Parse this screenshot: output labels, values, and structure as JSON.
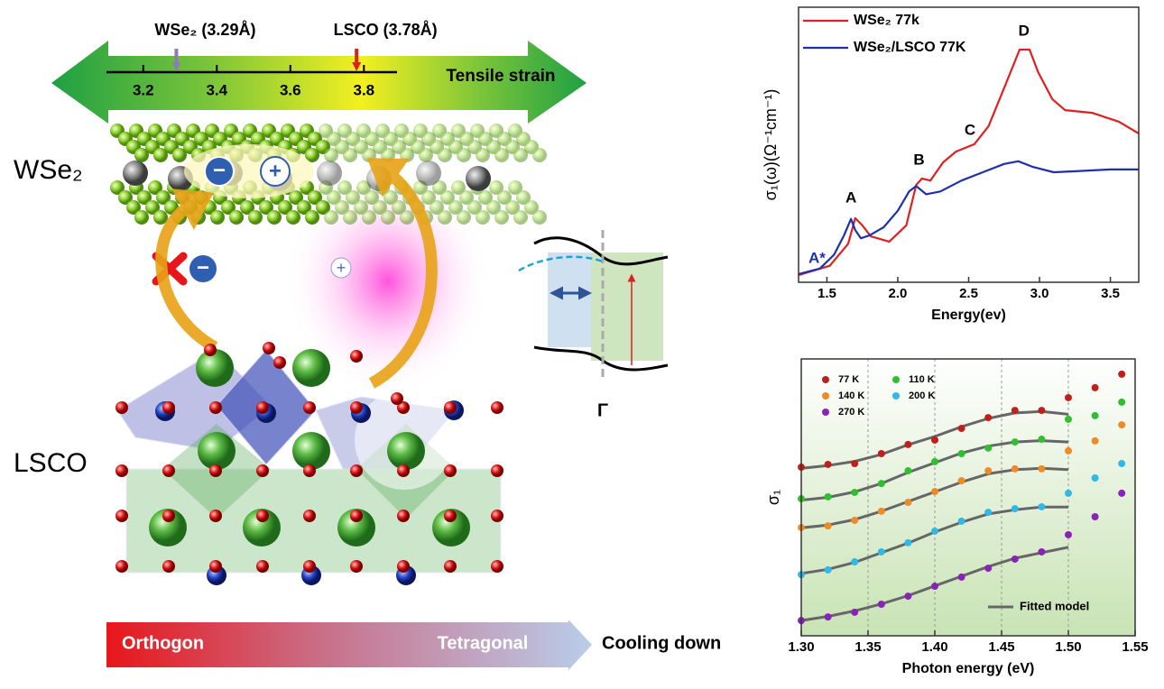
{
  "schematic": {
    "scale": {
      "xlim": [
        3.1,
        3.89
      ],
      "xticks": [
        3.2,
        3.4,
        3.6,
        3.8
      ],
      "markers": [
        {
          "label": "WSe₂ (3.29Å)",
          "value": 3.29,
          "color": "#8e7cb8"
        },
        {
          "label": "LSCO (3.78Å)",
          "value": 3.78,
          "color": "#e02020"
        }
      ]
    },
    "scale_title": "Tensile strain",
    "layers": [
      "WSe₂",
      "LSCO"
    ],
    "charges": {
      "minus": "−",
      "plus": "+"
    },
    "band_label": "Γ",
    "phase_start": "Orthogon",
    "phase_end": "Tetragonal",
    "process": "Cooling down"
  },
  "chart_data": [
    {
      "type": "line",
      "xlabel": "Energy(ev)",
      "ylabel": "σ₁(ω)(Ω⁻¹cm⁻¹)",
      "xlim": [
        1.3,
        3.7
      ],
      "ylim": [
        0,
        1
      ],
      "xticks": [
        1.5,
        {
          "value": 2.0,
          "label": "2.0"
        },
        2.5,
        {
          "value": 3.0,
          "label": "3.0"
        },
        3.5
      ],
      "legend": "upper left",
      "series": [
        {
          "name": "WSe₂ 77k",
          "color": "#e02020",
          "x": [
            1.3,
            1.52,
            1.65,
            1.7,
            1.75,
            1.81,
            1.94,
            2.06,
            2.13,
            2.17,
            2.23,
            2.32,
            2.41,
            2.54,
            2.64,
            2.77,
            2.86,
            2.93,
            2.99,
            3.09,
            3.18,
            3.37,
            3.56,
            3.7
          ],
          "values": [
            0.026,
            0.06,
            0.14,
            0.233,
            0.207,
            0.167,
            0.148,
            0.207,
            0.354,
            0.377,
            0.37,
            0.436,
            0.475,
            0.502,
            0.567,
            0.731,
            0.846,
            0.846,
            0.764,
            0.666,
            0.626,
            0.616,
            0.584,
            0.541
          ]
        },
        {
          "name": "WSe₂/LSCO 77K",
          "color": "#1f2fb0",
          "x": [
            1.3,
            1.45,
            1.55,
            1.62,
            1.67,
            1.7,
            1.74,
            1.8,
            1.9,
            2.0,
            2.08,
            2.13,
            2.2,
            2.3,
            2.45,
            2.6,
            2.75,
            2.85,
            2.95,
            3.1,
            3.3,
            3.5,
            3.7
          ],
          "values": [
            0.03,
            0.05,
            0.1,
            0.17,
            0.23,
            0.19,
            0.16,
            0.17,
            0.2,
            0.26,
            0.33,
            0.35,
            0.32,
            0.33,
            0.37,
            0.4,
            0.43,
            0.44,
            0.42,
            0.4,
            0.405,
            0.41,
            0.41
          ]
        }
      ],
      "annotations": [
        {
          "text": "A",
          "x": 1.67,
          "y": 0.305,
          "color": "#000000"
        },
        {
          "text": "B",
          "x": 2.15,
          "y": 0.443,
          "color": "#000000"
        },
        {
          "text": "C",
          "x": 2.51,
          "y": 0.551,
          "color": "#000000"
        },
        {
          "text": "D",
          "x": 2.89,
          "y": 0.911,
          "color": "#000000"
        },
        {
          "text": "A*",
          "x": 1.43,
          "y": 0.085,
          "color": "#1f2fb0"
        }
      ]
    },
    {
      "type": "scatter",
      "xlabel": "Photon energy (eV)",
      "ylabel": "σ₁",
      "xlim": [
        1.3,
        1.55
      ],
      "ylim": [
        0,
        1
      ],
      "xticks": [
        {
          "value": 1.3,
          "label": "1.30"
        },
        1.35,
        {
          "value": 1.4,
          "label": "1.40"
        },
        1.45,
        {
          "value": 1.5,
          "label": "1.50"
        },
        1.55
      ],
      "grid": true,
      "legend": "upper left",
      "x": [
        1.3,
        1.32,
        1.34,
        1.36,
        1.38,
        1.4,
        1.42,
        1.44,
        1.46,
        1.48,
        1.5,
        1.52,
        1.54
      ],
      "series": [
        {
          "name": "77 K",
          "color": "#c0201c",
          "values": [
            0.609,
            0.619,
            0.622,
            0.658,
            0.691,
            0.707,
            0.749,
            0.788,
            0.814,
            0.814,
            0.86,
            0.896,
            0.945
          ]
        },
        {
          "name": "110 K",
          "color": "#2ec02e",
          "values": [
            0.495,
            0.502,
            0.518,
            0.55,
            0.596,
            0.629,
            0.658,
            0.678,
            0.7,
            0.71,
            0.782,
            0.795,
            0.844
          ]
        },
        {
          "name": "140 K",
          "color": "#f08a24",
          "values": [
            0.391,
            0.397,
            0.417,
            0.45,
            0.482,
            0.521,
            0.56,
            0.596,
            0.603,
            0.603,
            0.668,
            0.704,
            0.762
          ]
        },
        {
          "name": "200 K",
          "color": "#2fb8e8",
          "values": [
            0.221,
            0.238,
            0.267,
            0.303,
            0.336,
            0.378,
            0.414,
            0.446,
            0.459,
            0.466,
            0.515,
            0.57,
            0.622
          ]
        },
        {
          "name": "270 K",
          "color": "#8a22b8",
          "values": [
            0.055,
            0.068,
            0.085,
            0.114,
            0.143,
            0.179,
            0.212,
            0.244,
            0.277,
            0.303,
            0.365,
            0.43,
            0.515
          ]
        }
      ],
      "fit_name": "Fitted model",
      "fit_color": "#666666",
      "fit_x": [
        1.3,
        1.32,
        1.34,
        1.36,
        1.38,
        1.4,
        1.42,
        1.44,
        1.46,
        1.48,
        1.5
      ],
      "fits": [
        {
          "values": [
            0.605,
            0.615,
            0.63,
            0.655,
            0.69,
            0.72,
            0.755,
            0.785,
            0.805,
            0.81,
            0.8
          ]
        },
        {
          "values": [
            0.49,
            0.5,
            0.52,
            0.55,
            0.59,
            0.625,
            0.66,
            0.685,
            0.7,
            0.705,
            0.7
          ]
        },
        {
          "values": [
            0.39,
            0.4,
            0.42,
            0.45,
            0.485,
            0.52,
            0.555,
            0.585,
            0.6,
            0.605,
            0.6
          ]
        },
        {
          "values": [
            0.225,
            0.24,
            0.265,
            0.3,
            0.335,
            0.375,
            0.41,
            0.44,
            0.455,
            0.465,
            0.465
          ]
        },
        {
          "values": [
            0.055,
            0.07,
            0.09,
            0.115,
            0.145,
            0.18,
            0.215,
            0.25,
            0.28,
            0.3,
            0.32
          ]
        }
      ]
    }
  ]
}
